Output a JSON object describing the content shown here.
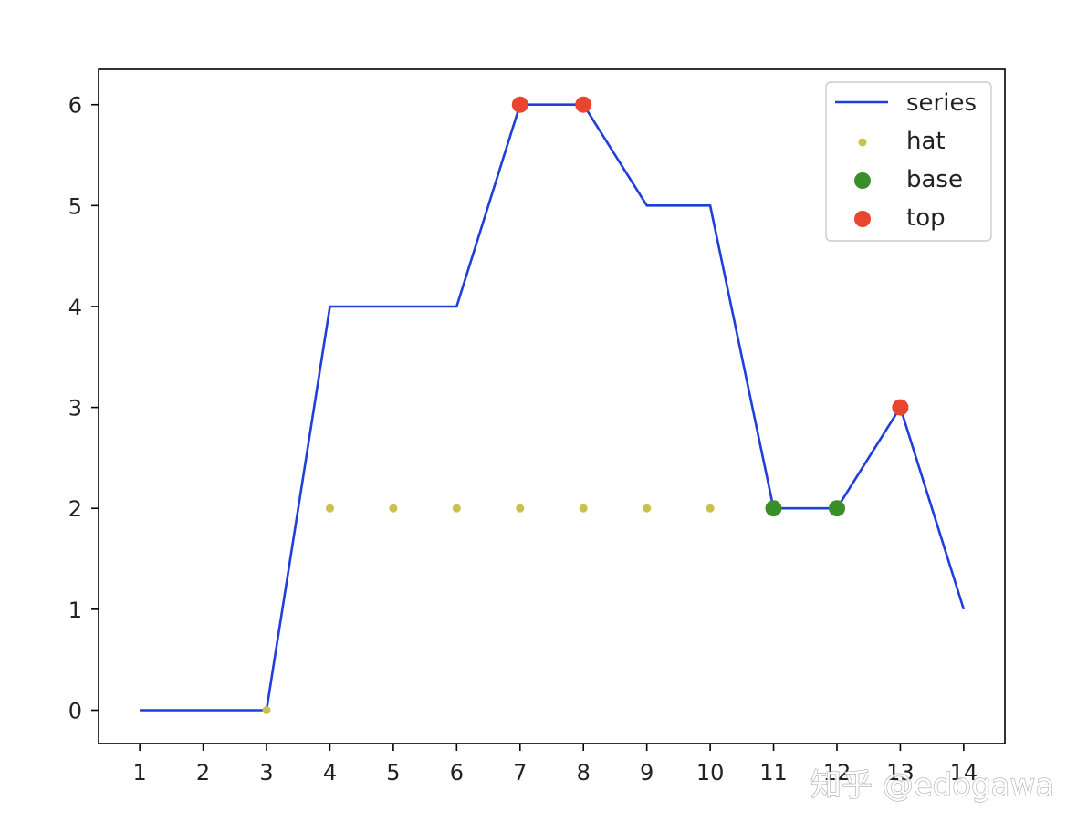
{
  "chart_data": {
    "type": "line",
    "title": "",
    "xlabel": "",
    "ylabel": "",
    "x": [
      1,
      2,
      3,
      4,
      5,
      6,
      7,
      8,
      9,
      10,
      11,
      12,
      13,
      14
    ],
    "xticks": [
      "1",
      "2",
      "3",
      "4",
      "5",
      "6",
      "7",
      "8",
      "9",
      "10",
      "11",
      "12",
      "13",
      "14"
    ],
    "yticks": [
      "0",
      "1",
      "2",
      "3",
      "4",
      "5",
      "6"
    ],
    "xlim": [
      0.35,
      14.65
    ],
    "ylim": [
      -0.33,
      6.35
    ],
    "grid": false,
    "legend_position": "top-right",
    "series": [
      {
        "name": "series",
        "kind": "line",
        "color": "#1f3fd8",
        "points": [
          [
            1,
            0
          ],
          [
            2,
            0
          ],
          [
            3,
            0
          ],
          [
            4,
            4
          ],
          [
            5,
            4
          ],
          [
            6,
            4
          ],
          [
            7,
            6
          ],
          [
            8,
            6
          ],
          [
            9,
            5
          ],
          [
            10,
            5
          ],
          [
            11,
            2
          ],
          [
            12,
            2
          ],
          [
            13,
            3
          ],
          [
            14,
            1
          ]
        ]
      },
      {
        "name": "hat",
        "kind": "scatter",
        "size": "small",
        "color": "#c9c24a",
        "points": [
          [
            3,
            0
          ],
          [
            4,
            2
          ],
          [
            5,
            2
          ],
          [
            6,
            2
          ],
          [
            7,
            2
          ],
          [
            8,
            2
          ],
          [
            9,
            2
          ],
          [
            10,
            2
          ]
        ]
      },
      {
        "name": "base",
        "kind": "scatter",
        "size": "large",
        "color": "#3a8f2a",
        "points": [
          [
            11,
            2
          ],
          [
            12,
            2
          ]
        ]
      },
      {
        "name": "top",
        "kind": "scatter",
        "size": "large",
        "color": "#e8462e",
        "points": [
          [
            7,
            6
          ],
          [
            8,
            6
          ],
          [
            13,
            3
          ]
        ]
      }
    ]
  },
  "watermark": "知乎 @edogawa"
}
